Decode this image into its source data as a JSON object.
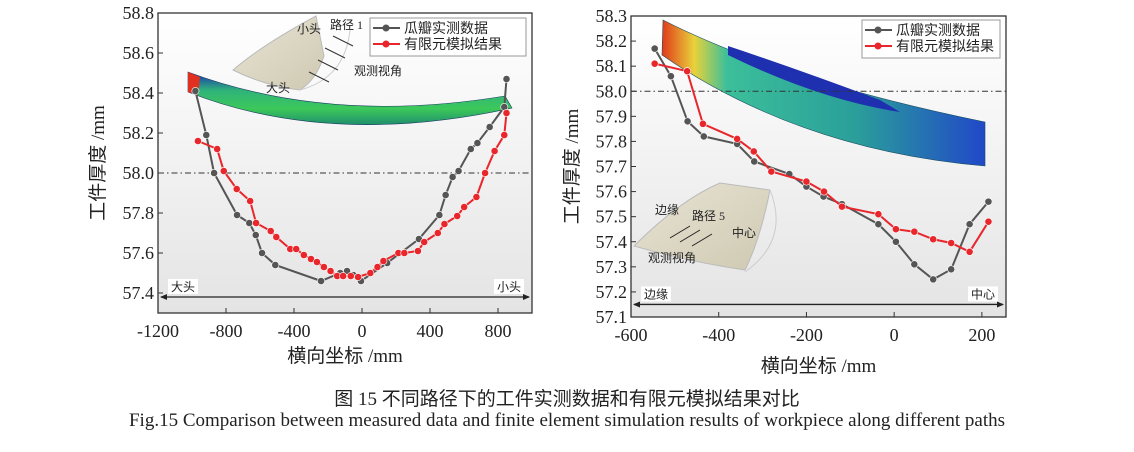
{
  "chart_data": [
    {
      "type": "line",
      "xlabel": "横向坐标 /mm",
      "ylabel": "工件厚度 /mm",
      "xlim": [
        -1200,
        1000
      ],
      "ylim": [
        57.3,
        58.8
      ],
      "xticks": [
        -1200,
        -800,
        -400,
        0,
        400,
        800
      ],
      "yticks": [
        57.4,
        57.6,
        57.8,
        58.0,
        58.2,
        58.4,
        58.6,
        58.8
      ],
      "reference_line": 58.0,
      "legend_position": "top-right",
      "annotations": {
        "left_end": "大头",
        "right_end": "小头",
        "inset_small_end": "小头",
        "inset_path": "路径 1",
        "inset_view": "观测视角",
        "inset_big_end": "大头"
      },
      "series": [
        {
          "name": "瓜瓣实测数据",
          "color": "#555555",
          "x": [
            -980,
            -916,
            -870,
            -735,
            -663,
            -625,
            -588,
            -510,
            -241,
            -128,
            -88,
            -51,
            -6,
            148,
            335,
            455,
            492,
            533,
            568,
            640,
            679,
            751,
            837,
            850
          ],
          "y": [
            58.41,
            58.19,
            58.0,
            57.79,
            57.75,
            57.69,
            57.6,
            57.54,
            57.46,
            57.5,
            57.51,
            57.49,
            57.46,
            57.55,
            57.67,
            57.79,
            57.89,
            57.98,
            58.01,
            58.12,
            58.15,
            58.23,
            58.33,
            58.47
          ]
        },
        {
          "name": "有限元模拟结果",
          "color": "#e8262b",
          "x": [
            -965,
            -852,
            -813,
            -737,
            -658,
            -623,
            -537,
            -504,
            -422,
            -387,
            -342,
            -300,
            -265,
            -224,
            -185,
            -146,
            -111,
            -66,
            -23,
            49,
            91,
            126,
            214,
            249,
            329,
            366,
            446,
            485,
            560,
            601,
            673,
            724,
            780,
            837,
            850
          ],
          "y": [
            58.16,
            58.12,
            58.01,
            57.92,
            57.86,
            57.75,
            57.71,
            57.68,
            57.62,
            57.62,
            57.59,
            57.57,
            57.555,
            57.53,
            57.51,
            57.485,
            57.485,
            57.485,
            57.48,
            57.5,
            57.53,
            57.56,
            57.6,
            57.6,
            57.61,
            57.655,
            57.7,
            57.745,
            57.785,
            57.83,
            57.88,
            58.0,
            58.11,
            58.19,
            58.3
          ]
        }
      ]
    },
    {
      "type": "line",
      "xlabel": "横向坐标 /mm",
      "ylabel": "工件厚度 /mm",
      "xlim": [
        -600,
        255
      ],
      "ylim": [
        57.1,
        58.3
      ],
      "xticks": [
        -600,
        -400,
        -200,
        0,
        200
      ],
      "yticks": [
        57.1,
        57.2,
        57.3,
        57.4,
        57.5,
        57.6,
        57.7,
        57.8,
        57.9,
        58.0,
        58.1,
        58.2,
        58.3
      ],
      "reference_line": 58.0,
      "legend_position": "top-right",
      "annotations": {
        "left_end": "边缘",
        "right_end": "中心",
        "inset_edge": "边缘",
        "inset_path": "路径 5",
        "inset_center": "中心",
        "inset_view": "观测视角"
      },
      "series": [
        {
          "name": "瓜瓣实测数据",
          "color": "#555555",
          "x": [
            -546,
            -509,
            -471,
            -434,
            -358,
            -319,
            -239,
            -200,
            -161,
            -119,
            -36,
            4,
            46,
            89,
            130,
            172,
            215
          ],
          "y": [
            58.17,
            58.06,
            57.88,
            57.82,
            57.79,
            57.72,
            57.67,
            57.62,
            57.58,
            57.55,
            57.47,
            57.4,
            57.31,
            57.25,
            57.29,
            57.47,
            57.56
          ]
        },
        {
          "name": "有限元模拟结果",
          "color": "#e8262b",
          "x": [
            -546,
            -472,
            -436,
            -358,
            -320,
            -280,
            -200,
            -160,
            -119,
            -36,
            4,
            46,
            89,
            130,
            172,
            215
          ],
          "y": [
            58.11,
            58.08,
            57.87,
            57.81,
            57.76,
            57.68,
            57.64,
            57.6,
            57.54,
            57.51,
            57.45,
            57.44,
            57.41,
            57.395,
            57.36,
            57.48
          ]
        }
      ]
    }
  ],
  "caption": {
    "cn": "图 15  不同路径下的工件实测数据和有限元模拟结果对比",
    "en": "Fig.15  Comparison between measured data and finite element simulation results of workpiece along different paths"
  }
}
